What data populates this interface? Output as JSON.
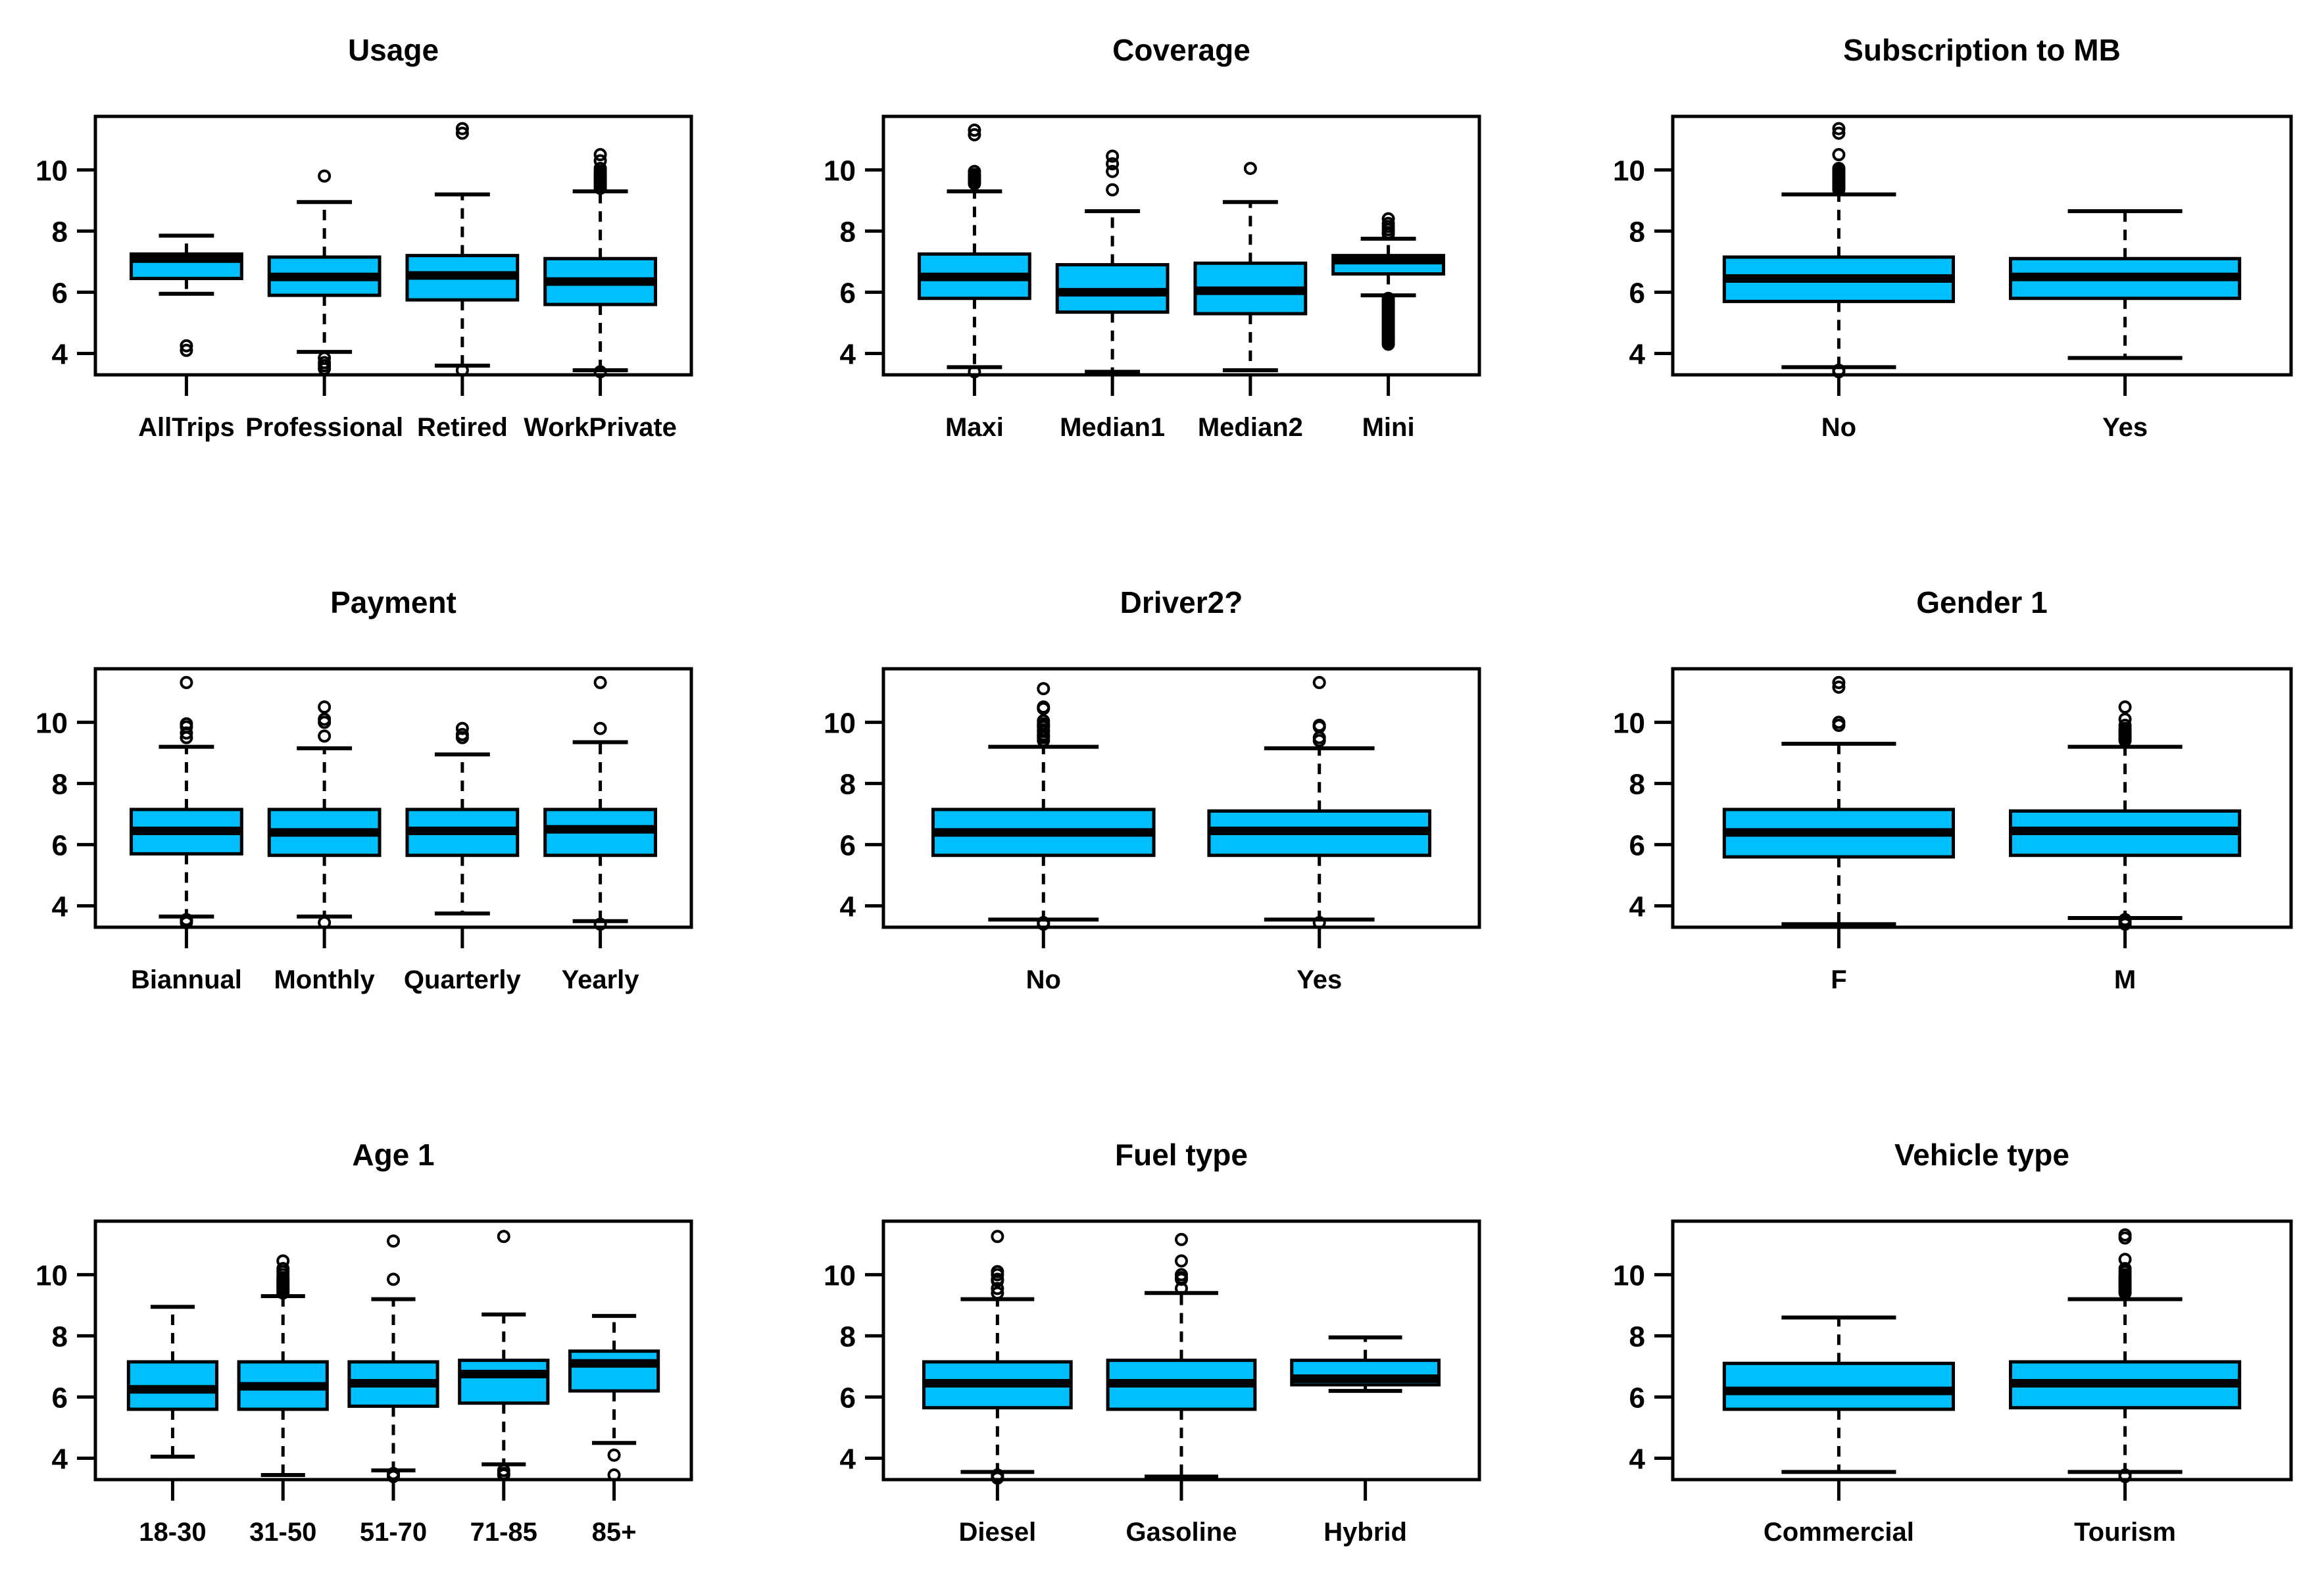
{
  "figure": {
    "background": "#ffffff",
    "box_fill": "#00BFFF",
    "line_color": "#000000",
    "y_ticks": [
      4,
      6,
      8,
      10
    ],
    "y_min": 3.3,
    "y_max": 11.75,
    "grid": "off",
    "legend": "none"
  },
  "chart_data": [
    {
      "type": "box",
      "title": "Usage",
      "xlabel": "",
      "ylabel": "",
      "ylim": [
        3.3,
        11.75
      ],
      "categories": [
        "AllTrips",
        "Professional",
        "Retired",
        "WorkPrivate"
      ],
      "boxes": [
        {
          "label": "AllTrips",
          "whislo": 5.95,
          "q1": 6.45,
          "med": 7.1,
          "q3": 7.25,
          "whishi": 7.85,
          "outliers": [
            4.25,
            4.1
          ]
        },
        {
          "label": "Professional",
          "whislo": 4.05,
          "q1": 5.9,
          "med": 6.5,
          "q3": 7.15,
          "whishi": 8.95,
          "outliers": [
            9.8,
            3.85,
            3.7,
            3.6,
            3.5
          ]
        },
        {
          "label": "Retired",
          "whislo": 3.6,
          "q1": 5.75,
          "med": 6.55,
          "q3": 7.2,
          "whishi": 9.2,
          "outliers": [
            11.35,
            11.2,
            3.45
          ]
        },
        {
          "label": "WorkPrivate",
          "whislo": 3.45,
          "q1": 5.6,
          "med": 6.35,
          "q3": 7.1,
          "whishi": 9.3,
          "outliers": [
            9.4,
            9.45,
            9.5,
            9.55,
            9.6,
            9.65,
            9.7,
            9.75,
            9.8,
            9.85,
            9.9,
            9.95,
            10.05,
            10.3,
            10.5,
            3.4
          ]
        }
      ]
    },
    {
      "type": "box",
      "title": "Coverage",
      "xlabel": "",
      "ylabel": "",
      "ylim": [
        3.3,
        11.75
      ],
      "categories": [
        "Maxi",
        "Median1",
        "Median2",
        "Mini"
      ],
      "boxes": [
        {
          "label": "Maxi",
          "whislo": 3.55,
          "q1": 5.8,
          "med": 6.5,
          "q3": 7.25,
          "whishi": 9.3,
          "outliers": [
            9.55,
            9.6,
            9.65,
            9.7,
            9.75,
            9.8,
            9.85,
            9.95,
            11.15,
            11.3,
            3.4
          ]
        },
        {
          "label": "Median1",
          "whislo": 3.4,
          "q1": 5.35,
          "med": 6.0,
          "q3": 6.9,
          "whishi": 8.65,
          "outliers": [
            9.35,
            9.95,
            10.2,
            10.45
          ]
        },
        {
          "label": "Median2",
          "whislo": 3.45,
          "q1": 5.3,
          "med": 6.05,
          "q3": 6.95,
          "whishi": 8.95,
          "outliers": [
            10.05
          ]
        },
        {
          "label": "Mini",
          "whislo": 5.9,
          "q1": 6.6,
          "med": 7.05,
          "q3": 7.2,
          "whishi": 7.75,
          "outliers": [
            7.9,
            7.95,
            8.05,
            8.15,
            8.25,
            8.4,
            5.8,
            5.75,
            5.7,
            5.65,
            5.6,
            5.55,
            5.5,
            5.45,
            5.4,
            5.35,
            5.3,
            5.25,
            5.2,
            5.15,
            5.1,
            5.05,
            5.0,
            4.95,
            4.9,
            4.85,
            4.8,
            4.75,
            4.7,
            4.65,
            4.6,
            4.55,
            4.5,
            4.45,
            4.4,
            4.35,
            4.3
          ]
        }
      ]
    },
    {
      "type": "box",
      "title": "Subscription to MB",
      "xlabel": "",
      "ylabel": "",
      "ylim": [
        3.3,
        11.75
      ],
      "categories": [
        "No",
        "Yes"
      ],
      "boxes": [
        {
          "label": "No",
          "whislo": 3.55,
          "q1": 5.7,
          "med": 6.45,
          "q3": 7.15,
          "whishi": 9.2,
          "outliers": [
            9.35,
            9.4,
            9.45,
            9.5,
            9.55,
            9.6,
            9.65,
            9.7,
            9.75,
            9.8,
            9.85,
            9.9,
            9.95,
            10.0,
            10.05,
            10.5,
            11.2,
            11.35,
            3.45,
            3.4
          ]
        },
        {
          "label": "Yes",
          "whislo": 3.85,
          "q1": 5.8,
          "med": 6.5,
          "q3": 7.1,
          "whishi": 8.65,
          "outliers": []
        }
      ]
    },
    {
      "type": "box",
      "title": "Payment",
      "xlabel": "",
      "ylabel": "",
      "ylim": [
        3.3,
        11.75
      ],
      "categories": [
        "Biannual",
        "Monthly",
        "Quarterly",
        "Yearly"
      ],
      "boxes": [
        {
          "label": "Biannual",
          "whislo": 3.65,
          "q1": 5.7,
          "med": 6.45,
          "q3": 7.15,
          "whishi": 9.2,
          "outliers": [
            9.5,
            9.65,
            9.85,
            9.95,
            11.3,
            3.55,
            3.5,
            3.45
          ]
        },
        {
          "label": "Monthly",
          "whislo": 3.65,
          "q1": 5.65,
          "med": 6.4,
          "q3": 7.15,
          "whishi": 9.15,
          "outliers": [
            9.55,
            10.0,
            10.1,
            10.5,
            3.45
          ]
        },
        {
          "label": "Quarterly",
          "whislo": 3.75,
          "q1": 5.65,
          "med": 6.45,
          "q3": 7.15,
          "whishi": 8.95,
          "outliers": [
            9.5,
            9.6,
            9.8
          ]
        },
        {
          "label": "Yearly",
          "whislo": 3.5,
          "q1": 5.65,
          "med": 6.5,
          "q3": 7.15,
          "whishi": 9.35,
          "outliers": [
            9.8,
            11.3,
            3.4
          ]
        }
      ]
    },
    {
      "type": "box",
      "title": "Driver2?",
      "xlabel": "",
      "ylabel": "",
      "ylim": [
        3.3,
        11.75
      ],
      "categories": [
        "No",
        "Yes"
      ],
      "boxes": [
        {
          "label": "No",
          "whislo": 3.55,
          "q1": 5.65,
          "med": 6.4,
          "q3": 7.15,
          "whishi": 9.2,
          "outliers": [
            9.4,
            9.5,
            9.55,
            9.6,
            9.7,
            9.75,
            9.85,
            9.9,
            9.95,
            10.05,
            10.45,
            10.5,
            11.1,
            3.45,
            3.4
          ]
        },
        {
          "label": "Yes",
          "whislo": 3.55,
          "q1": 5.65,
          "med": 6.45,
          "q3": 7.1,
          "whishi": 9.15,
          "outliers": [
            9.4,
            9.5,
            9.85,
            9.9,
            11.3,
            3.45
          ]
        }
      ]
    },
    {
      "type": "box",
      "title": "Gender 1",
      "xlabel": "",
      "ylabel": "",
      "ylim": [
        3.3,
        11.75
      ],
      "categories": [
        "F",
        "M"
      ],
      "boxes": [
        {
          "label": "F",
          "whislo": 3.4,
          "q1": 5.6,
          "med": 6.4,
          "q3": 7.15,
          "whishi": 9.3,
          "outliers": [
            9.9,
            10.0,
            11.15,
            11.3
          ]
        },
        {
          "label": "M",
          "whislo": 3.6,
          "q1": 5.65,
          "med": 6.45,
          "q3": 7.1,
          "whishi": 9.2,
          "outliers": [
            9.4,
            9.45,
            9.5,
            9.55,
            9.6,
            9.65,
            9.7,
            9.75,
            9.8,
            9.9,
            10.1,
            10.5,
            3.55,
            3.5,
            3.45,
            3.4
          ]
        }
      ]
    },
    {
      "type": "box",
      "title": "Age 1",
      "xlabel": "",
      "ylabel": "",
      "ylim": [
        3.3,
        11.75
      ],
      "categories": [
        "18-30",
        "31-50",
        "51-70",
        "71-85",
        "85+"
      ],
      "boxes": [
        {
          "label": "18-30",
          "whislo": 4.05,
          "q1": 5.6,
          "med": 6.25,
          "q3": 7.15,
          "whishi": 8.95,
          "outliers": []
        },
        {
          "label": "31-50",
          "whislo": 3.45,
          "q1": 5.6,
          "med": 6.35,
          "q3": 7.15,
          "whishi": 9.3,
          "outliers": [
            9.4,
            9.45,
            9.5,
            9.55,
            9.6,
            9.65,
            9.7,
            9.75,
            9.8,
            9.85,
            9.9,
            10.0,
            10.1,
            10.2,
            10.45
          ]
        },
        {
          "label": "51-70",
          "whislo": 3.6,
          "q1": 5.7,
          "med": 6.45,
          "q3": 7.15,
          "whishi": 9.2,
          "outliers": [
            9.85,
            11.1,
            3.5,
            3.45,
            3.4
          ]
        },
        {
          "label": "71-85",
          "whislo": 3.8,
          "q1": 5.8,
          "med": 6.75,
          "q3": 7.2,
          "whishi": 8.7,
          "outliers": [
            11.25,
            3.6,
            3.5,
            3.45
          ]
        },
        {
          "label": "85+",
          "whislo": 4.5,
          "q1": 6.2,
          "med": 7.1,
          "q3": 7.5,
          "whishi": 8.65,
          "outliers": [
            4.1,
            3.45
          ]
        }
      ]
    },
    {
      "type": "box",
      "title": "Fuel type",
      "xlabel": "",
      "ylabel": "",
      "ylim": [
        3.3,
        11.75
      ],
      "categories": [
        "Diesel",
        "Gasoline",
        "Hybrid"
      ],
      "boxes": [
        {
          "label": "Diesel",
          "whislo": 3.55,
          "q1": 5.65,
          "med": 6.45,
          "q3": 7.15,
          "whishi": 9.2,
          "outliers": [
            9.4,
            9.55,
            9.8,
            9.85,
            10.0,
            10.1,
            11.25,
            3.45,
            3.4,
            3.35
          ]
        },
        {
          "label": "Gasoline",
          "whislo": 3.4,
          "q1": 5.6,
          "med": 6.45,
          "q3": 7.2,
          "whishi": 9.4,
          "outliers": [
            9.55,
            9.85,
            9.9,
            10.0,
            10.45,
            11.15
          ]
        },
        {
          "label": "Hybrid",
          "whislo": 6.2,
          "q1": 6.4,
          "med": 6.6,
          "q3": 7.2,
          "whishi": 7.95,
          "outliers": []
        }
      ]
    },
    {
      "type": "box",
      "title": "Vehicle  type",
      "xlabel": "",
      "ylabel": "",
      "ylim": [
        3.3,
        11.75
      ],
      "categories": [
        "Commercial",
        "Tourism"
      ],
      "boxes": [
        {
          "label": "Commercial",
          "whislo": 3.55,
          "q1": 5.6,
          "med": 6.2,
          "q3": 7.1,
          "whishi": 8.6,
          "outliers": []
        },
        {
          "label": "Tourism",
          "whislo": 3.55,
          "q1": 5.65,
          "med": 6.45,
          "q3": 7.15,
          "whishi": 9.2,
          "outliers": [
            9.4,
            9.45,
            9.5,
            9.55,
            9.6,
            9.65,
            9.7,
            9.75,
            9.8,
            9.85,
            9.9,
            9.95,
            10.0,
            10.1,
            10.2,
            10.5,
            11.2,
            11.3,
            3.45,
            3.4
          ]
        }
      ]
    }
  ]
}
